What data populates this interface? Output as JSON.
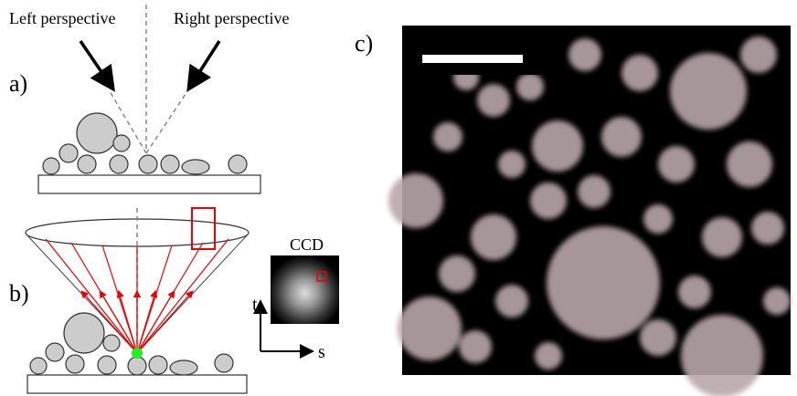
{
  "panel_a": {
    "label": "a)",
    "left_perspective": "Left perspective",
    "right_perspective": "Right perspective"
  },
  "panel_b": {
    "label": "b)",
    "sensor": "CCD",
    "axis_vertical": "t",
    "axis_horizontal": "s"
  },
  "panel_c": {
    "label": "c)"
  }
}
